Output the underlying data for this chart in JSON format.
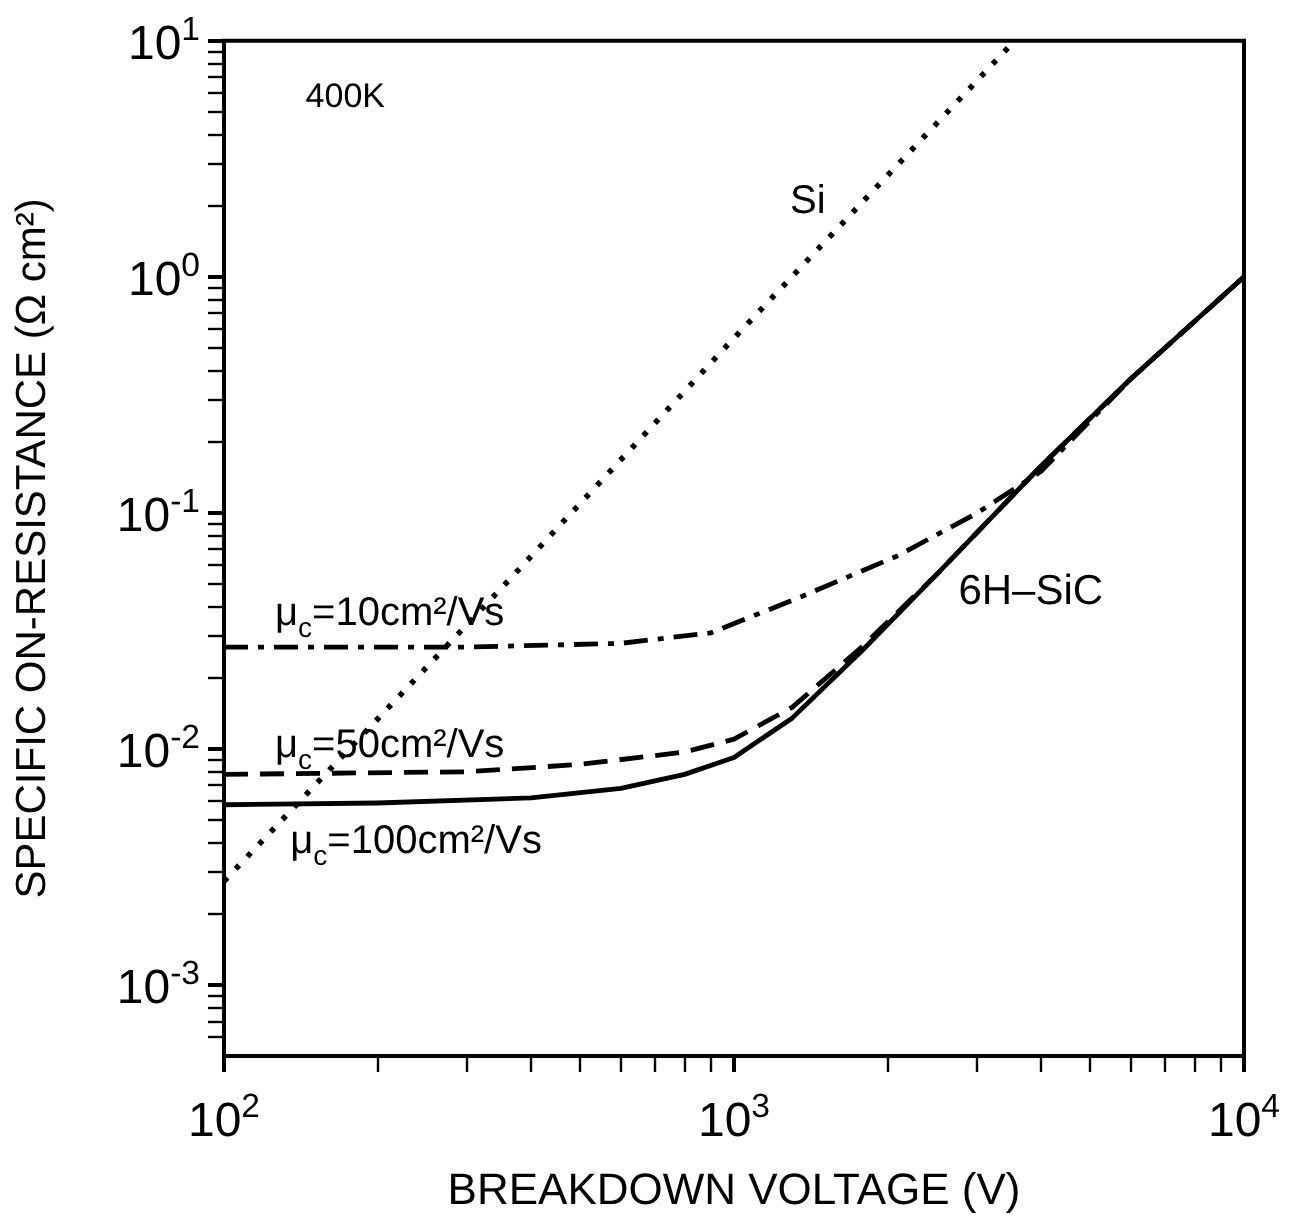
{
  "chart_data": {
    "type": "line",
    "xlabel": "BREAKDOWN VOLTAGE (V)",
    "ylabel": "SPECIFIC ON-RESISTANCE (Ω cm²)",
    "log": "xy",
    "grid": false,
    "legend": false,
    "marker": "none",
    "xlim": [
      100,
      10000
    ],
    "ylim": [
      0.0005,
      10
    ],
    "xticks": [
      {
        "value": 100,
        "label": "10$^{2}$"
      },
      {
        "value": 200,
        "label": null
      },
      {
        "value": 300,
        "label": null
      },
      {
        "value": 400,
        "label": null
      },
      {
        "value": 500,
        "label": null
      },
      {
        "value": 600,
        "label": null
      },
      {
        "value": 700,
        "label": null
      },
      {
        "value": 800,
        "label": null
      },
      {
        "value": 900,
        "label": null
      },
      {
        "value": 1000,
        "label": "10$^{3}$"
      },
      {
        "value": 2000,
        "label": null
      },
      {
        "value": 3000,
        "label": null
      },
      {
        "value": 4000,
        "label": null
      },
      {
        "value": 5000,
        "label": null
      },
      {
        "value": 6000,
        "label": null
      },
      {
        "value": 7000,
        "label": null
      },
      {
        "value": 8000,
        "label": null
      },
      {
        "value": 9000,
        "label": null
      },
      {
        "value": 10000,
        "label": "10$^{4}$"
      }
    ],
    "yticks": [
      {
        "value": 0.0006,
        "label": null
      },
      {
        "value": 0.0007,
        "label": null
      },
      {
        "value": 0.0008,
        "label": null
      },
      {
        "value": 0.0009,
        "label": null
      },
      {
        "value": 0.001,
        "label": "10$^{-3}$"
      },
      {
        "value": 0.002,
        "label": null
      },
      {
        "value": 0.003,
        "label": null
      },
      {
        "value": 0.004,
        "label": null
      },
      {
        "value": 0.005,
        "label": null
      },
      {
        "value": 0.006,
        "label": null
      },
      {
        "value": 0.007,
        "label": null
      },
      {
        "value": 0.008,
        "label": null
      },
      {
        "value": 0.009,
        "label": null
      },
      {
        "value": 0.01,
        "label": "10$^{-2}$"
      },
      {
        "value": 0.02,
        "label": null
      },
      {
        "value": 0.03,
        "label": null
      },
      {
        "value": 0.04,
        "label": null
      },
      {
        "value": 0.05,
        "label": null
      },
      {
        "value": 0.06,
        "label": null
      },
      {
        "value": 0.07,
        "label": null
      },
      {
        "value": 0.08,
        "label": null
      },
      {
        "value": 0.09,
        "label": null
      },
      {
        "value": 0.1,
        "label": "10$^{-1}$"
      },
      {
        "value": 0.2,
        "label": null
      },
      {
        "value": 0.3,
        "label": null
      },
      {
        "value": 0.4,
        "label": null
      },
      {
        "value": 0.5,
        "label": null
      },
      {
        "value": 0.6,
        "label": null
      },
      {
        "value": 0.7,
        "label": null
      },
      {
        "value": 0.8,
        "label": null
      },
      {
        "value": 0.9,
        "label": null
      },
      {
        "value": 1,
        "label": "10$^{0}$"
      },
      {
        "value": 2,
        "label": null
      },
      {
        "value": 3,
        "label": null
      },
      {
        "value": 4,
        "label": null
      },
      {
        "value": 5,
        "label": null
      },
      {
        "value": 6,
        "label": null
      },
      {
        "value": 7,
        "label": null
      },
      {
        "value": 8,
        "label": null
      },
      {
        "value": 9,
        "label": null
      },
      {
        "value": 10,
        "label": "10$^{1}$"
      }
    ],
    "annotations": [
      "400K",
      "6H–SiC"
    ],
    "series": [
      {
        "name": "Si",
        "color": "#000000",
        "line_style": "dotted",
        "x": [
          100,
          350,
          1000,
          3550
        ],
        "values": [
          0.00275,
          0.048,
          0.55,
          10
        ]
      },
      {
        "name": "μ$_{c}$=10cm²/Vs",
        "color": "#000000",
        "line_style": "dashdot",
        "x": [
          100,
          300,
          600,
          900,
          1350,
          2100,
          3000,
          4000,
          6000,
          10000
        ],
        "values": [
          0.027,
          0.027,
          0.028,
          0.031,
          0.044,
          0.066,
          0.1,
          0.15,
          0.37,
          1.0
        ]
      },
      {
        "name": "μ$_{c}$=50cm²/Vs",
        "color": "#000000",
        "line_style": "dashed",
        "x": [
          100,
          300,
          500,
          800,
          1000,
          1300,
          1780,
          2500,
          4000,
          6000,
          10000
        ],
        "values": [
          0.0078,
          0.008,
          0.0086,
          0.0097,
          0.011,
          0.015,
          0.027,
          0.055,
          0.158,
          0.37,
          1.0
        ]
      },
      {
        "name": "μ$_{c}$=100cm²/Vs",
        "color": "#000000",
        "line_style": "solid",
        "x": [
          100,
          200,
          400,
          600,
          800,
          1000,
          1300,
          1780,
          2500,
          4000,
          6000,
          10000
        ],
        "values": [
          0.0058,
          0.0059,
          0.0062,
          0.0068,
          0.0078,
          0.0092,
          0.0135,
          0.026,
          0.055,
          0.158,
          0.37,
          1.0
        ]
      }
    ]
  }
}
